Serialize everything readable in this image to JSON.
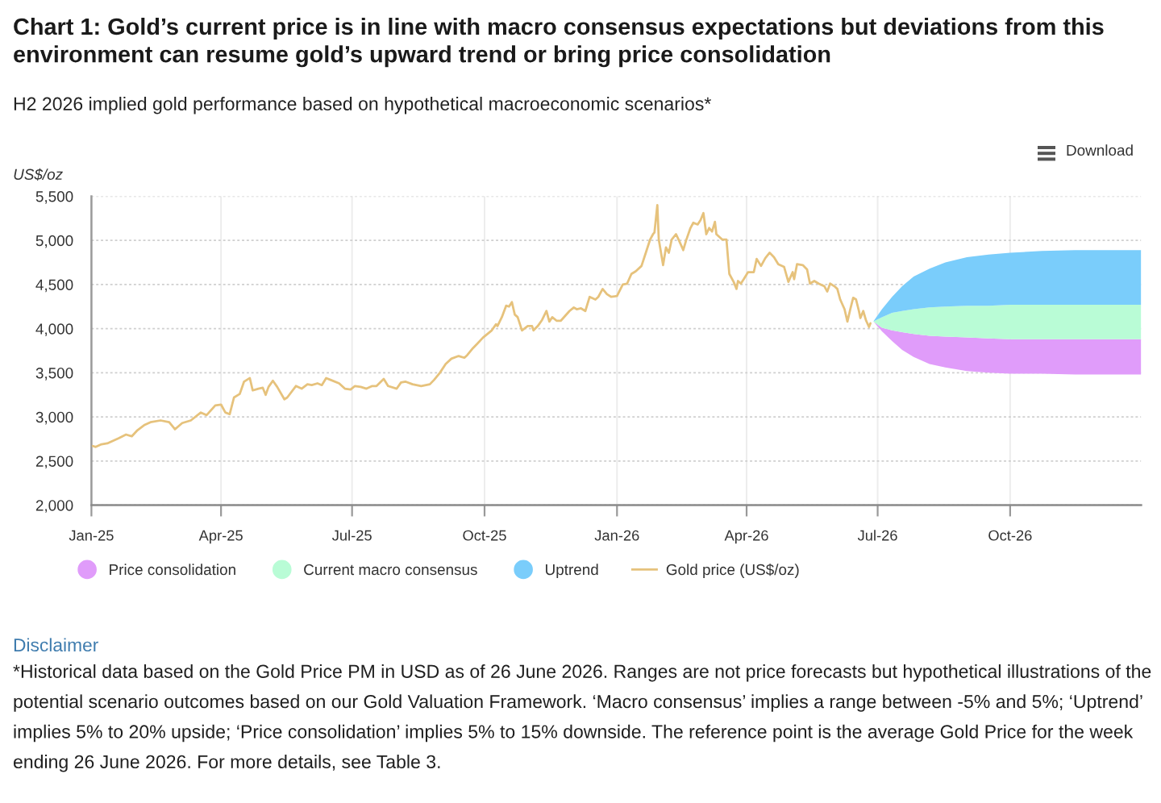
{
  "chart_data": {
    "type": "line",
    "title": "Chart 1: Gold’s current price is in line with macro consensus expectations but deviations from this environment can resume gold’s upward trend or bring price consolidation",
    "subtitle": "H2 2026 implied gold performance based on hypothetical macroeconomic scenarios*",
    "ylabel": "US$/oz",
    "xlim": [
      "2025-01-01",
      "2026-12-31"
    ],
    "xticks": [
      {
        "value": "2025-01-01",
        "label": "Jan-25"
      },
      {
        "value": "2025-04-01",
        "label": "Apr-25"
      },
      {
        "value": "2025-07-01",
        "label": "Jul-25"
      },
      {
        "value": "2025-10-01",
        "label": "Oct-25"
      },
      {
        "value": "2026-01-01",
        "label": "Jan-26"
      },
      {
        "value": "2026-04-01",
        "label": "Apr-26"
      },
      {
        "value": "2026-07-01",
        "label": "Jul-26"
      },
      {
        "value": "2026-10-01",
        "label": "Oct-26"
      }
    ],
    "ylim": [
      2000,
      5500
    ],
    "yticks": [
      {
        "value": 2000,
        "label": "2,000"
      },
      {
        "value": 2500,
        "label": "2,500"
      },
      {
        "value": 3000,
        "label": "3,000"
      },
      {
        "value": 3500,
        "label": "3,500"
      },
      {
        "value": 4000,
        "label": "4,000"
      },
      {
        "value": 4500,
        "label": "4,500"
      },
      {
        "value": 5000,
        "label": "5,000"
      },
      {
        "value": 5500,
        "label": "5,500"
      }
    ],
    "grid": true,
    "legend": "bottom",
    "series": [
      {
        "name": "Price consolidation",
        "type": "area",
        "color": "#e09cfa",
        "x": [
          "2026-06-28",
          "2026-07-04",
          "2026-07-11",
          "2026-07-18",
          "2026-07-26",
          "2026-08-06",
          "2026-08-17",
          "2026-09-01",
          "2026-09-16",
          "2026-10-01",
          "2026-10-23",
          "2026-11-15",
          "2026-12-31"
        ],
        "values": [
          null,
          null,
          null,
          null,
          null,
          null,
          null,
          null,
          null,
          null,
          null,
          null,
          null
        ],
        "lower": [
          4080,
          3970,
          3860,
          3760,
          3680,
          3600,
          3560,
          3520,
          3500,
          3490,
          3490,
          3480,
          3480
        ],
        "upper": [
          4080,
          4010,
          3980,
          3960,
          3940,
          3920,
          3910,
          3900,
          3890,
          3880,
          3880,
          3880,
          3880
        ]
      },
      {
        "name": "Current macro consensus",
        "type": "area",
        "color": "#b9fcd6",
        "x": [
          "2026-06-28",
          "2026-07-04",
          "2026-07-11",
          "2026-07-18",
          "2026-07-26",
          "2026-08-06",
          "2026-08-17",
          "2026-09-01",
          "2026-09-16",
          "2026-10-01",
          "2026-10-23",
          "2026-11-15",
          "2026-12-31"
        ],
        "values": [
          null,
          null,
          null,
          null,
          null,
          null,
          null,
          null,
          null,
          null,
          null,
          null,
          null
        ],
        "lower": [
          4080,
          4010,
          3980,
          3960,
          3940,
          3920,
          3910,
          3900,
          3890,
          3880,
          3880,
          3880,
          3880
        ],
        "upper": [
          4080,
          4130,
          4180,
          4200,
          4220,
          4240,
          4250,
          4260,
          4260,
          4270,
          4270,
          4270,
          4270
        ]
      },
      {
        "name": "Uptrend",
        "type": "area",
        "color": "#7acdfb",
        "x": [
          "2026-06-28",
          "2026-07-04",
          "2026-07-11",
          "2026-07-18",
          "2026-07-26",
          "2026-08-06",
          "2026-08-17",
          "2026-09-01",
          "2026-09-16",
          "2026-10-01",
          "2026-10-23",
          "2026-11-15",
          "2026-12-31"
        ],
        "values": [
          null,
          null,
          null,
          null,
          null,
          null,
          null,
          null,
          null,
          null,
          null,
          null,
          null
        ],
        "lower": [
          4080,
          4130,
          4180,
          4200,
          4220,
          4240,
          4250,
          4260,
          4260,
          4270,
          4270,
          4270,
          4270
        ],
        "upper": [
          4080,
          4220,
          4360,
          4480,
          4590,
          4680,
          4750,
          4810,
          4840,
          4860,
          4880,
          4890,
          4890
        ]
      },
      {
        "name": "Gold price (US$/oz)",
        "type": "line",
        "color": "#e6c27c",
        "x": [
          "2025-01-02",
          "2025-01-04",
          "2025-01-08",
          "2025-01-12",
          "2025-01-16",
          "2025-01-20",
          "2025-01-25",
          "2025-01-29",
          "2025-02-02",
          "2025-02-07",
          "2025-02-11",
          "2025-02-18",
          "2025-02-24",
          "2025-02-28",
          "2025-03-05",
          "2025-03-11",
          "2025-03-18",
          "2025-03-22",
          "2025-03-28",
          "2025-04-01",
          "2025-04-04",
          "2025-04-07",
          "2025-04-10",
          "2025-04-14",
          "2025-04-17",
          "2025-04-21",
          "2025-04-23",
          "2025-04-27",
          "2025-04-30",
          "2025-05-02",
          "2025-05-04",
          "2025-05-07",
          "2025-05-10",
          "2025-05-15",
          "2025-05-17",
          "2025-05-23",
          "2025-05-27",
          "2025-05-31",
          "2025-06-03",
          "2025-06-07",
          "2025-06-10",
          "2025-06-13",
          "2025-06-16",
          "2025-06-22",
          "2025-06-26",
          "2025-06-30",
          "2025-07-03",
          "2025-07-07",
          "2025-07-11",
          "2025-07-15",
          "2025-07-18",
          "2025-07-23",
          "2025-07-26",
          "2025-08-01",
          "2025-08-04",
          "2025-08-07",
          "2025-08-12",
          "2025-08-18",
          "2025-08-24",
          "2025-08-27",
          "2025-08-31",
          "2025-09-04",
          "2025-09-08",
          "2025-09-13",
          "2025-09-17",
          "2025-09-19",
          "2025-09-23",
          "2025-09-26",
          "2025-09-30",
          "2025-10-06",
          "2025-10-09",
          "2025-10-10",
          "2025-10-13",
          "2025-10-16",
          "2025-10-18",
          "2025-10-20",
          "2025-10-22",
          "2025-10-24",
          "2025-10-27",
          "2025-10-31",
          "2025-11-03",
          "2025-11-04",
          "2025-11-07",
          "2025-11-10",
          "2025-11-13",
          "2025-11-15",
          "2025-11-17",
          "2025-11-20",
          "2025-11-23",
          "2025-11-29",
          "2025-12-02",
          "2025-12-04",
          "2025-12-07",
          "2025-12-10",
          "2025-12-13",
          "2025-12-17",
          "2025-12-19",
          "2025-12-22",
          "2025-12-25",
          "2025-12-28",
          "2026-01-01",
          "2026-01-05",
          "2026-01-08",
          "2026-01-11",
          "2026-01-14",
          "2026-01-18",
          "2026-01-21",
          "2026-01-24",
          "2026-01-26",
          "2026-01-27",
          "2026-01-29",
          "2026-01-30",
          "2026-02-02",
          "2026-02-04",
          "2026-02-06",
          "2026-02-08",
          "2026-02-11",
          "2026-02-13",
          "2026-02-16",
          "2026-02-18",
          "2026-02-21",
          "2026-02-23",
          "2026-02-26",
          "2026-02-28",
          "2026-03-02",
          "2026-03-04",
          "2026-03-06",
          "2026-03-08",
          "2026-03-10",
          "2026-03-11",
          "2026-03-15",
          "2026-03-18",
          "2026-03-20",
          "2026-03-23",
          "2026-03-25",
          "2026-03-26",
          "2026-03-28",
          "2026-03-30",
          "2026-04-02",
          "2026-04-06",
          "2026-04-08",
          "2026-04-11",
          "2026-04-14",
          "2026-04-17",
          "2026-04-20",
          "2026-04-23",
          "2026-04-27",
          "2026-04-30",
          "2026-05-03",
          "2026-05-04",
          "2026-05-06",
          "2026-05-10",
          "2026-05-13",
          "2026-05-15",
          "2026-05-18",
          "2026-05-21",
          "2026-05-25",
          "2026-05-27",
          "2026-05-29",
          "2026-06-01",
          "2026-06-03",
          "2026-06-05",
          "2026-06-08",
          "2026-06-10",
          "2026-06-12",
          "2026-06-14",
          "2026-06-16",
          "2026-06-18",
          "2026-06-19",
          "2026-06-21",
          "2026-06-23",
          "2026-06-25",
          "2026-06-26"
        ],
        "values": [
          2670,
          2660,
          2690,
          2700,
          2730,
          2760,
          2800,
          2780,
          2850,
          2910,
          2940,
          2960,
          2940,
          2860,
          2930,
          2960,
          3050,
          3020,
          3130,
          3140,
          3050,
          3030,
          3220,
          3260,
          3400,
          3440,
          3300,
          3320,
          3330,
          3250,
          3340,
          3410,
          3340,
          3200,
          3220,
          3350,
          3320,
          3370,
          3360,
          3380,
          3360,
          3440,
          3420,
          3380,
          3320,
          3310,
          3350,
          3340,
          3320,
          3350,
          3350,
          3430,
          3350,
          3320,
          3390,
          3400,
          3370,
          3350,
          3370,
          3420,
          3500,
          3600,
          3660,
          3690,
          3670,
          3700,
          3780,
          3830,
          3900,
          3980,
          4050,
          4030,
          4130,
          4260,
          4250,
          4300,
          4160,
          4130,
          3980,
          4030,
          4030,
          3980,
          4030,
          4100,
          4200,
          4080,
          4130,
          4090,
          4090,
          4200,
          4240,
          4220,
          4230,
          4200,
          4360,
          4330,
          4360,
          4450,
          4390,
          4360,
          4370,
          4500,
          4510,
          4620,
          4650,
          4710,
          4860,
          5010,
          5070,
          5090,
          5400,
          5010,
          4720,
          4920,
          4860,
          5010,
          5070,
          5000,
          4890,
          5000,
          5140,
          5200,
          5180,
          5230,
          5310,
          5070,
          5140,
          5100,
          5210,
          5070,
          5010,
          5010,
          4620,
          4530,
          4450,
          4540,
          4510,
          4560,
          4640,
          4640,
          4790,
          4710,
          4800,
          4860,
          4810,
          4730,
          4700,
          4530,
          4640,
          4560,
          4730,
          4720,
          4670,
          4510,
          4540,
          4510,
          4480,
          4420,
          4510,
          4480,
          4450,
          4330,
          4220,
          4080,
          4220,
          4350,
          4330,
          4200,
          4120,
          4200,
          4090,
          4020,
          4060
        ]
      }
    ],
    "annotations": [
      "Download",
      "Disclaimer",
      "*Historical data based on the Gold Price PM in USD as of 26 June 2026. Ranges are not price forecasts but hypothetical illustrations of the potential scenario outcomes based on our Gold Valuation Framework. ‘Macro consensus’ implies a range between -5% and 5%; ‘Uptrend’ implies 5% to 20% upside; ‘Price consolidation’ implies 5% to 15% downside. The reference point is the average Gold Price for the week ending 26 June 2026. For more details, see Table 3."
    ]
  }
}
